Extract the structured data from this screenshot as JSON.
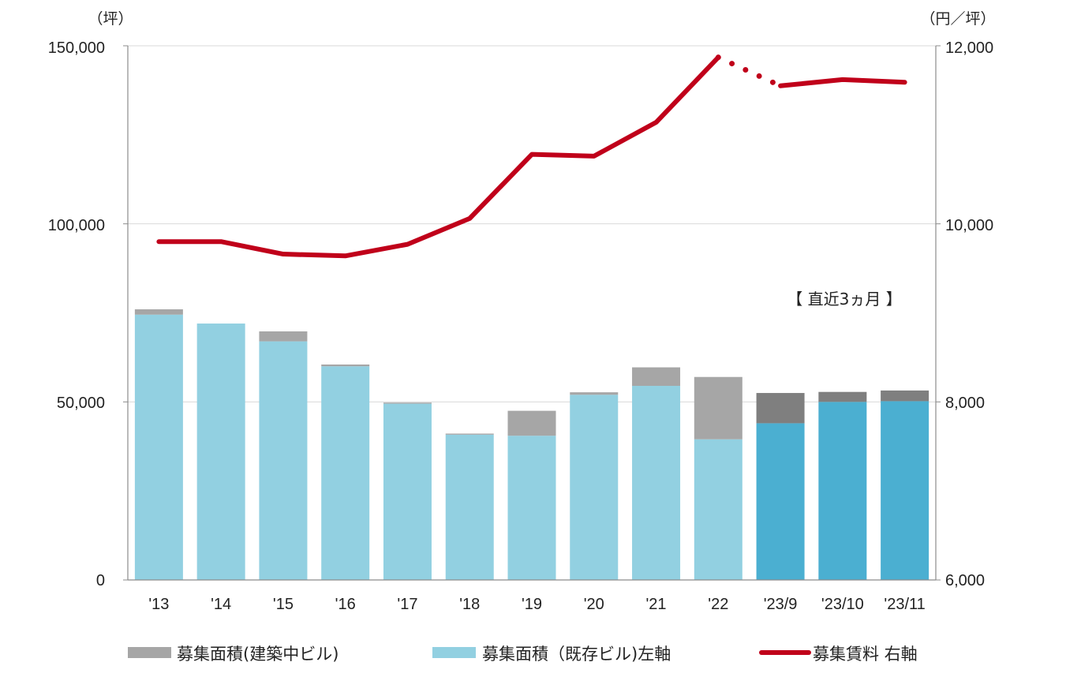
{
  "chart_data": {
    "type": "bar",
    "categories": [
      "'13",
      "'14",
      "'15",
      "'16",
      "'17",
      "'18",
      "'19",
      "'20",
      "'21",
      "'22",
      "'23/9",
      "'23/10",
      "'23/11"
    ],
    "series": [
      {
        "name": "募集面積（既存ビル）左軸",
        "axis": "left",
        "kind": "bar",
        "values": [
          74500,
          72000,
          67000,
          60000,
          49500,
          40800,
          40500,
          52000,
          54500,
          39500,
          44000,
          50000,
          50200
        ]
      },
      {
        "name": "募集面積（建築中ビル）",
        "axis": "left",
        "kind": "bar-stacked",
        "values": [
          1500,
          0,
          2800,
          500,
          300,
          300,
          7000,
          700,
          5200,
          17500,
          8500,
          2800,
          3000
        ]
      },
      {
        "name": "募集賃料 右軸",
        "axis": "right",
        "kind": "line",
        "values": [
          9800,
          9800,
          9660,
          9640,
          9770,
          10060,
          10780,
          10760,
          11140,
          11870,
          11550,
          11620,
          11590
        ]
      }
    ],
    "left_axis": {
      "unit": "（坪）",
      "ylim": [
        0,
        150000
      ],
      "ticks": [
        "0",
        "50,000",
        "100,000",
        "150,000"
      ],
      "tick_values": [
        0,
        50000,
        100000,
        150000
      ]
    },
    "right_axis": {
      "unit": "（円／坪）",
      "ylim": [
        6000,
        12000
      ],
      "ticks": [
        "6,000",
        "8,000",
        "10,000",
        "12,000"
      ],
      "tick_values": [
        6000,
        8000,
        10000,
        12000
      ]
    },
    "annotation": "【 直近3ヵ月 】",
    "recent_months_start_index": 10,
    "legend": [
      {
        "label": "募集面積(建築中ビル)",
        "color": "#a6a6a6"
      },
      {
        "label": "募集面積（既存ビル)左軸",
        "color": "#92d0e1"
      },
      {
        "label": "募集賃料 右軸",
        "color": "#c0001a"
      }
    ],
    "colors": {
      "existing": "#92d0e1",
      "construction": "#a6a6a6",
      "existing_recent": "#4bafd1",
      "construction_recent": "#7f7f7f",
      "rent_line": "#c0001a",
      "grid": "#d9d9d9",
      "axis": "#8c8c8c"
    }
  }
}
